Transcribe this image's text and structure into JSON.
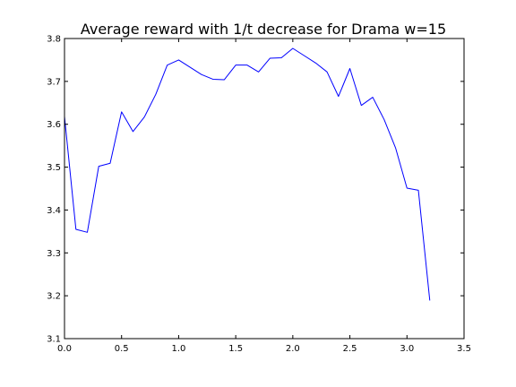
{
  "chart_data": {
    "type": "line",
    "title": "Average reward with 1/t decrease for Drama w=15",
    "xlabel": "",
    "ylabel": "",
    "xlim": [
      0.0,
      3.5
    ],
    "ylim": [
      3.1,
      3.8
    ],
    "xticks": [
      "0.0",
      "0.5",
      "1.0",
      "1.5",
      "2.0",
      "2.5",
      "3.0",
      "3.5"
    ],
    "yticks": [
      "3.1",
      "3.2",
      "3.3",
      "3.4",
      "3.5",
      "3.6",
      "3.7",
      "3.8"
    ],
    "grid": false,
    "legend": "none",
    "series": [
      {
        "color": "#0000ff",
        "x": [
          0.0,
          0.1,
          0.2,
          0.3,
          0.4,
          0.5,
          0.6,
          0.7,
          0.8,
          0.9,
          1.0,
          1.1,
          1.2,
          1.3,
          1.4,
          1.5,
          1.6,
          1.7,
          1.8,
          1.9,
          2.0,
          2.1,
          2.2,
          2.3,
          2.4,
          2.5,
          2.6,
          2.7,
          2.8,
          2.9,
          3.0,
          3.1,
          3.2
        ],
        "y": [
          3.618,
          3.355,
          3.348,
          3.502,
          3.509,
          3.629,
          3.583,
          3.617,
          3.67,
          3.738,
          3.75,
          3.733,
          3.716,
          3.705,
          3.704,
          3.738,
          3.738,
          3.722,
          3.754,
          3.755,
          3.777,
          3.76,
          3.743,
          3.722,
          3.665,
          3.73,
          3.644,
          3.663,
          3.611,
          3.545,
          3.451,
          3.446,
          3.189
        ]
      }
    ]
  }
}
